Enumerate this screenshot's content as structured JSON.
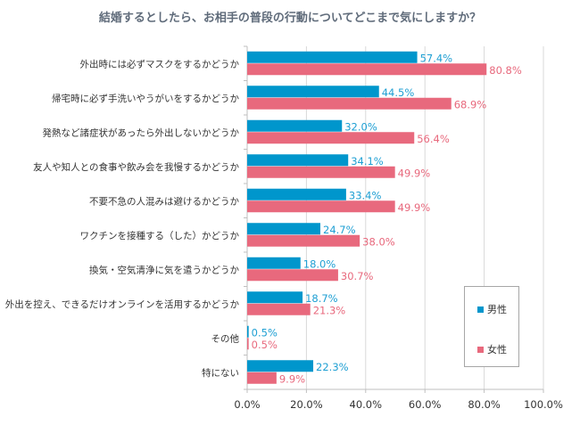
{
  "chart_data": {
    "type": "bar",
    "orientation": "horizontal",
    "title": "結婚するとしたら、お相手の普段の行動についてどこまで気にしますか？",
    "xlabel": "",
    "ylabel": "",
    "xlim": [
      0,
      100
    ],
    "grid": true,
    "legend_position": "right",
    "tick_labels": [
      "0.0%",
      "20.0%",
      "40.0%",
      "60.0%",
      "80.0%",
      "100.0%"
    ],
    "tick_values": [
      0,
      20,
      40,
      60,
      80,
      100
    ],
    "categories": [
      "外出時には必ずマスクをするかどうか",
      "帰宅時に必ず手洗いやうがいをするかどうか",
      "発熱など諸症状があったら外出しないかどうか",
      "友人や知人との食事や飲み会を我慢するかどうか",
      "不要不急の人混みは避けるかどうか",
      "ワクチンを接種する（した）かどうか",
      "換気・空気清浄に気を遣うかどうか",
      "外出を控え、できるだけオンラインを活用するかどうか",
      "その他",
      "特にない"
    ],
    "series": [
      {
        "name": "男性",
        "color": "#0096cc",
        "label_color": "#1e9fd3",
        "values": [
          57.4,
          44.5,
          32.0,
          34.1,
          33.4,
          24.7,
          18.0,
          18.7,
          0.5,
          22.3
        ],
        "labels": [
          "57.4%",
          "44.5%",
          "32.0%",
          "34.1%",
          "33.4%",
          "24.7%",
          "18.0%",
          "18.7%",
          "0.5%",
          "22.3%"
        ]
      },
      {
        "name": "女性",
        "color": "#e8697d",
        "label_color": "#e8697d",
        "values": [
          80.8,
          68.9,
          56.4,
          49.9,
          49.9,
          38.0,
          30.7,
          21.3,
          0.5,
          9.9
        ],
        "labels": [
          "80.8%",
          "68.9%",
          "56.4%",
          "49.9%",
          "49.9%",
          "38.0%",
          "30.7%",
          "21.3%",
          "0.5%",
          "9.9%"
        ]
      }
    ]
  }
}
